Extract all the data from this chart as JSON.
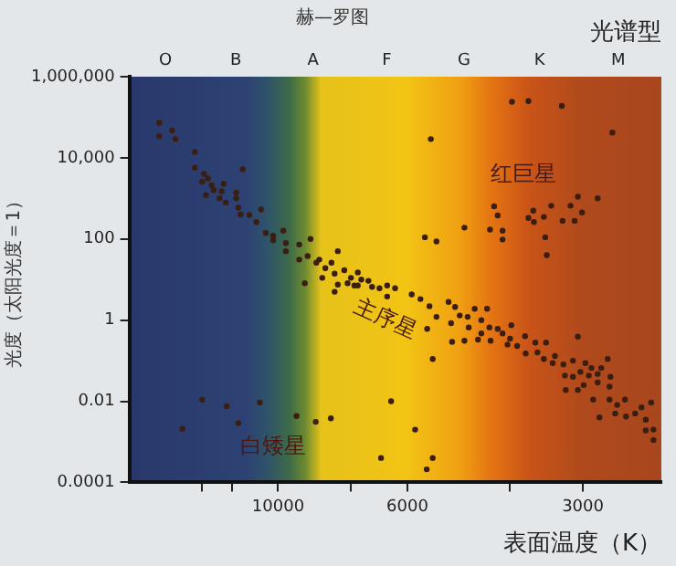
{
  "chart_data": {
    "type": "scatter",
    "title": "赫—罗图",
    "xlabel": "表面温度（K）",
    "ylabel": "光度（太阳光度＝1）",
    "log": "xy",
    "grid": false,
    "legend": false,
    "marker": "circle",
    "xlim": [
      18000,
      2200
    ],
    "xticks": [
      {
        "value": 13500,
        "label": null
      },
      {
        "value": 12000,
        "label": null
      },
      10000,
      {
        "value": 7500,
        "label": null
      },
      6000,
      {
        "value": 4000,
        "label": null
      },
      3000
    ],
    "ylim": [
      0.0001,
      1000000
    ],
    "yticks": [
      {
        "value": 0.0001,
        "label": "0.0001"
      },
      {
        "value": 0.01,
        "label": "0.01"
      },
      {
        "value": 1,
        "label": "1"
      },
      {
        "value": 100,
        "label": "100"
      },
      {
        "value": 10000,
        "label": "10,000"
      },
      {
        "value": 1000000,
        "label": "1,000,000"
      }
    ],
    "annotations": [
      "光谱型",
      "O",
      "B",
      "A",
      "F",
      "G",
      "K",
      "M",
      "红巨星",
      "主序星",
      "白矮星"
    ],
    "series": [
      {
        "color": "#3a1e12",
        "x": [
          16000,
          15200,
          16000,
          15000,
          13900,
          13900,
          13400,
          13200,
          13500,
          13000,
          12400,
          11800,
          11500,
          12900,
          12500,
          13300,
          12600,
          12300,
          11800,
          11700,
          11600,
          11200,
          10700,
          10900,
          10500,
          10200,
          10200,
          9800,
          9700,
          9700,
          9200,
          8800,
          8900,
          9200,
          8600,
          8500,
          8300,
          7900,
          8100,
          9000,
          8400,
          8000,
          7700,
          7900,
          8000,
          7600,
          7300,
          7500,
          7200,
          3970,
          3720,
          3260,
          2670,
          5470,
          4260,
          4200,
          4790,
          4330,
          4120,
          4120,
          5600,
          5350,
          3650,
          3500,
          3400,
          3150,
          3060,
          3010,
          2830,
          3250,
          3100,
          3720,
          3640,
          3480,
          3460,
          7300,
          7400,
          7000,
          6900,
          6700,
          6500,
          6300,
          6500,
          5900,
          5700,
          5500,
          5100,
          4970,
          4880,
          4730,
          4600,
          4380,
          4480,
          4340,
          4200,
          3980,
          4710,
          5050,
          5350,
          5550,
          4790,
          4540,
          4000,
          3770,
          3620,
          3470,
          3060,
          5030,
          4480,
          4320,
          4120,
          4040,
          3890,
          3760,
          3590,
          3500,
          3350,
          3380,
          3240,
          3120,
          2970,
          2900,
          2720,
          3220,
          3120,
          3030,
          2930,
          2830,
          2790,
          2690,
          3210,
          3060,
          2990,
          2830,
          2700,
          2880,
          2700,
          2620,
          2540,
          2440,
          2810,
          2640,
          2530,
          2380,
          2290,
          2340,
          2340,
          2270,
          2270,
          5430,
          6400,
          5820,
          6660,
          5430,
          5560,
          14600,
          13500,
          12250,
          11700,
          10750,
          9300,
          8620,
          8120
        ],
        "values": [
          73000,
          47000,
          34000,
          29000,
          14000,
          5700,
          4000,
          3100,
          2600,
          2100,
          2300,
          1400,
          5200,
          1600,
          1500,
          1200,
          1000,
          790,
          1000,
          590,
          400,
          390,
          530,
          260,
          140,
          120,
          93,
          160,
          79,
          50,
          73,
          100,
          38,
          31,
          26,
          31,
          19,
          50,
          26,
          8.1,
          11,
          14,
          17,
          7.5,
          5,
          8.1,
          7.1,
          11,
          10,
          240000,
          250000,
          190000,
          42000,
          29000,
          640,
          380,
          190,
          170,
          160,
          97,
          110,
          87,
          500,
          350,
          660,
          660,
          1100,
          450,
          1000,
          280,
          280,
          330,
          260,
          110,
          40,
          15,
          7.1,
          9.3,
          6.6,
          6.1,
          7.1,
          6.1,
          3.8,
          4.3,
          3.3,
          2.2,
          2.8,
          2.1,
          1.3,
          1.2,
          1.9,
          1.9,
          1,
          0.66,
          0.61,
          0.75,
          0.66,
          0.84,
          1.2,
          0.61,
          0.31,
          0.33,
          0.35,
          0.4,
          0.28,
          0.28,
          0.39,
          0.29,
          0.47,
          0.31,
          0.47,
          0.25,
          0.23,
          0.15,
          0.16,
          0.11,
          0.13,
          0.087,
          0.081,
          0.1,
          0.087,
          0.066,
          0.11,
          0.043,
          0.04,
          0.053,
          0.043,
          0.047,
          0.066,
          0.04,
          0.019,
          0.019,
          0.025,
          0.029,
          0.023,
          0.011,
          0.011,
          0.0081,
          0.011,
          0.005,
          0.004,
          0.005,
          0.0042,
          0.0071,
          0.0093,
          0.0035,
          0.0019,
          0.0011,
          0.002,
          0.11,
          0.01,
          0.002,
          0.0004,
          0.0004,
          0.00021,
          0.0021,
          0.011,
          0.0075,
          0.0029,
          0.0093,
          0.0043,
          0.0031,
          0.0038
        ]
      }
    ]
  }
}
